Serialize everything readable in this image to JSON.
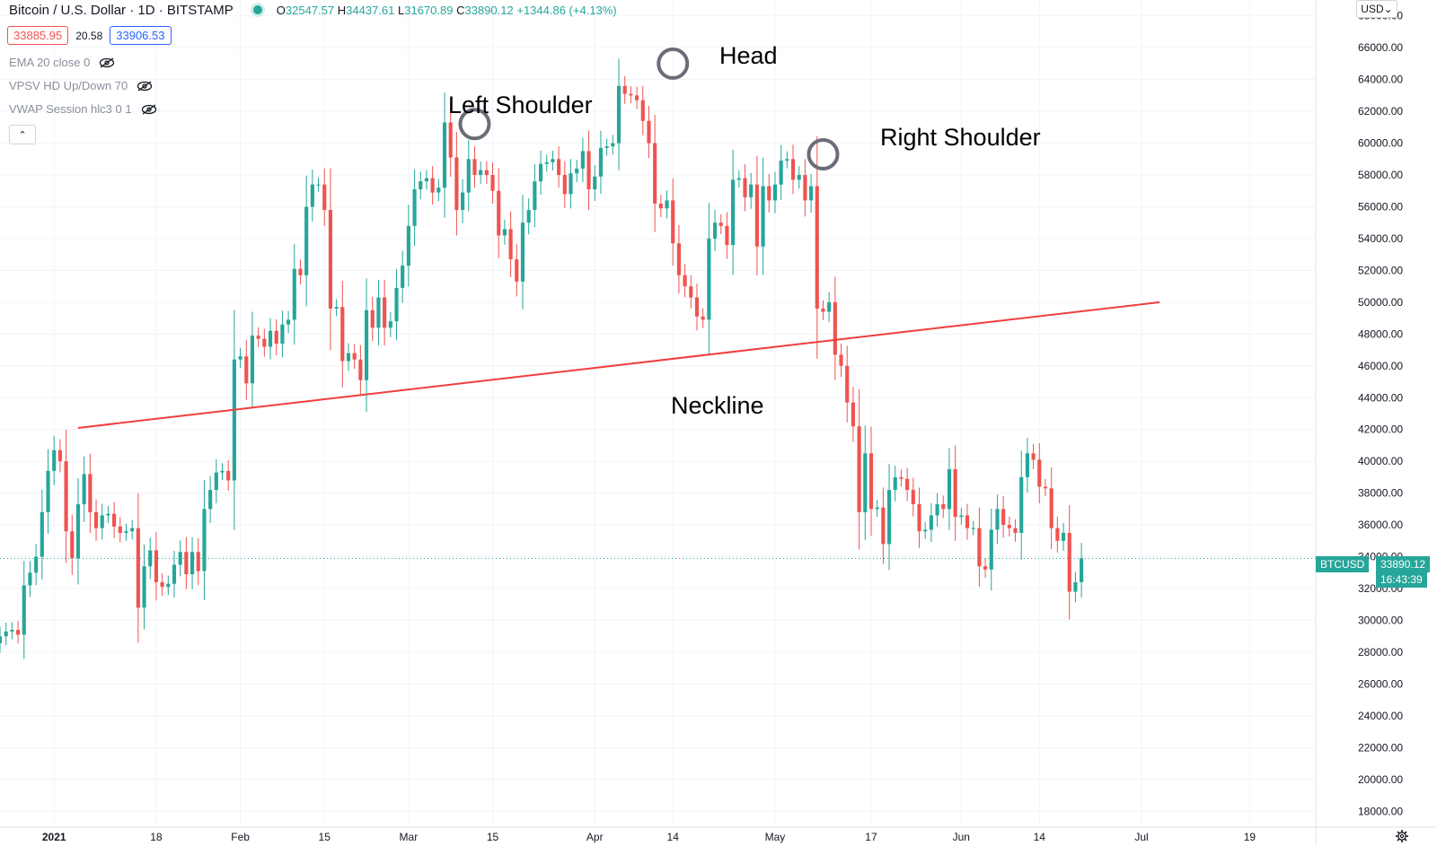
{
  "header": {
    "title": "Bitcoin / U.S. Dollar · 1D · BITSTAMP",
    "ohlc": {
      "o_label": "O",
      "o": "32547.57",
      "h_label": "H",
      "h": "34437.61",
      "l_label": "L",
      "l": "31670.89",
      "c_label": "C",
      "c": "33890.12",
      "change": "+1344.86 (+4.13%)"
    },
    "sell_price": "33885.95",
    "spread": "20.58",
    "buy_price": "33906.53"
  },
  "indicators": [
    {
      "label": "EMA 20 close 0",
      "icon": "eye-crossed-icon"
    },
    {
      "label": "VPSV HD Up/Down 70",
      "icon": "eye-crossed-icon"
    },
    {
      "label": "VWAP Session hlc3 0 1",
      "icon": "eye-crossed-icon"
    }
  ],
  "collapse_glyph": "⌃",
  "currency_button": "USD⌄",
  "last_price_tag": {
    "symbol": "BTCUSD",
    "price": "33890.12",
    "countdown": "16:43:39"
  },
  "annotations": {
    "left_shoulder": "Left Shoulder",
    "head": "Head",
    "right_shoulder": "Right Shoulder",
    "neckline": "Neckline"
  },
  "colors": {
    "up": "#26a69a",
    "down": "#ef5350",
    "neckline": "#f23d3d",
    "marker": "#6a6d78",
    "grid": "#f0f3fa"
  },
  "chart_data": {
    "type": "candlestick",
    "ylim": [
      17000,
      69000
    ],
    "y_ticks": [
      18000,
      20000,
      22000,
      24000,
      26000,
      28000,
      30000,
      32000,
      34000,
      36000,
      38000,
      40000,
      42000,
      44000,
      46000,
      48000,
      50000,
      52000,
      54000,
      56000,
      58000,
      60000,
      62000,
      64000,
      66000,
      68000
    ],
    "y_tick_labels": [
      "18000.00",
      "20000.00",
      "22000.00",
      "24000.00",
      "26000.00",
      "28000.00",
      "30000.00",
      "32000.00",
      "34000.00",
      "36000.00",
      "38000.00",
      "40000.00",
      "42000.00",
      "44000.00",
      "46000.00",
      "48000.00",
      "50000.00",
      "52000.00",
      "54000.00",
      "56000.00",
      "58000.00",
      "60000.00",
      "62000.00",
      "64000.00",
      "66000.00",
      "68000.00"
    ],
    "x_ticks": [
      {
        "label": "2021",
        "day": 0,
        "bold": true
      },
      {
        "label": "18",
        "day": 17
      },
      {
        "label": "Feb",
        "day": 31
      },
      {
        "label": "15",
        "day": 45
      },
      {
        "label": "Mar",
        "day": 59
      },
      {
        "label": "15",
        "day": 73
      },
      {
        "label": "Apr",
        "day": 90
      },
      {
        "label": "14",
        "day": 103
      },
      {
        "label": "May",
        "day": 120
      },
      {
        "label": "17",
        "day": 136
      },
      {
        "label": "Jun",
        "day": 151
      },
      {
        "label": "14",
        "day": 164
      },
      {
        "label": "Jul",
        "day": 181
      },
      {
        "label": "19",
        "day": 199
      }
    ],
    "x_start_day": -9,
    "x_end_day": 210,
    "closes": [
      29000,
      29300,
      29400,
      29100,
      32200,
      33000,
      34000,
      36800,
      39400,
      40700,
      40000,
      35600,
      33900,
      37300,
      39200,
      36800,
      35800,
      36600,
      36700,
      35900,
      35500,
      35600,
      35800,
      30800,
      33400,
      34400,
      32400,
      32100,
      32300,
      33500,
      34300,
      32900,
      34300,
      33100,
      37000,
      38200,
      39300,
      39400,
      38800,
      46400,
      46600,
      44900,
      47900,
      47700,
      47200,
      48200,
      47400,
      48600,
      48900,
      52100,
      51700,
      56000,
      57400,
      57400,
      55800,
      49600,
      49700,
      46300,
      46800,
      46400,
      45100,
      49500,
      48400,
      50300,
      48400,
      48800,
      50900,
      52300,
      54800,
      57100,
      57600,
      57800,
      56900,
      57200,
      61300,
      59100,
      55800,
      56900,
      59000,
      58000,
      58300,
      58000,
      57000,
      54200,
      54600,
      52700,
      51300,
      55000,
      55800,
      57600,
      58700,
      58800,
      59000,
      58000,
      56800,
      58100,
      58400,
      59500,
      57100,
      57900,
      59700,
      59800,
      60000,
      63600,
      63100,
      63000,
      62700,
      61400,
      60000,
      56200,
      55900,
      56400,
      53700,
      51700,
      51000,
      50300,
      49100,
      48900,
      54000,
      55000,
      54800,
      53600,
      57700,
      57800,
      56600,
      57400,
      53500,
      57300,
      56400,
      57400,
      58900,
      59000,
      57700,
      58000,
      56400,
      57300,
      49600,
      49400,
      50000,
      46700,
      46000,
      43700,
      42200,
      36800,
      40500,
      37000,
      37100,
      34800,
      38200,
      39000,
      38900,
      38200,
      37300,
      35600,
      35700,
      36600,
      37300,
      37000,
      39500,
      36500,
      36600,
      35800,
      35800,
      33400,
      33200,
      35700,
      37000,
      36000,
      35800,
      35500,
      39000,
      40500,
      40100,
      38400,
      38300,
      35800,
      35000,
      35500,
      31800,
      32400,
      33900
    ],
    "neckline": {
      "x1_day": 4,
      "y1": 42100,
      "x2_day": 184,
      "y2": 50000
    },
    "markers": [
      {
        "name": "left-shoulder",
        "day": 70,
        "y": 61200
      },
      {
        "name": "head",
        "day": 103,
        "y": 65000
      },
      {
        "name": "right-shoulder",
        "day": 128,
        "y": 59300
      }
    ],
    "last_price": 33890.12,
    "grid": true,
    "legend": "none"
  }
}
